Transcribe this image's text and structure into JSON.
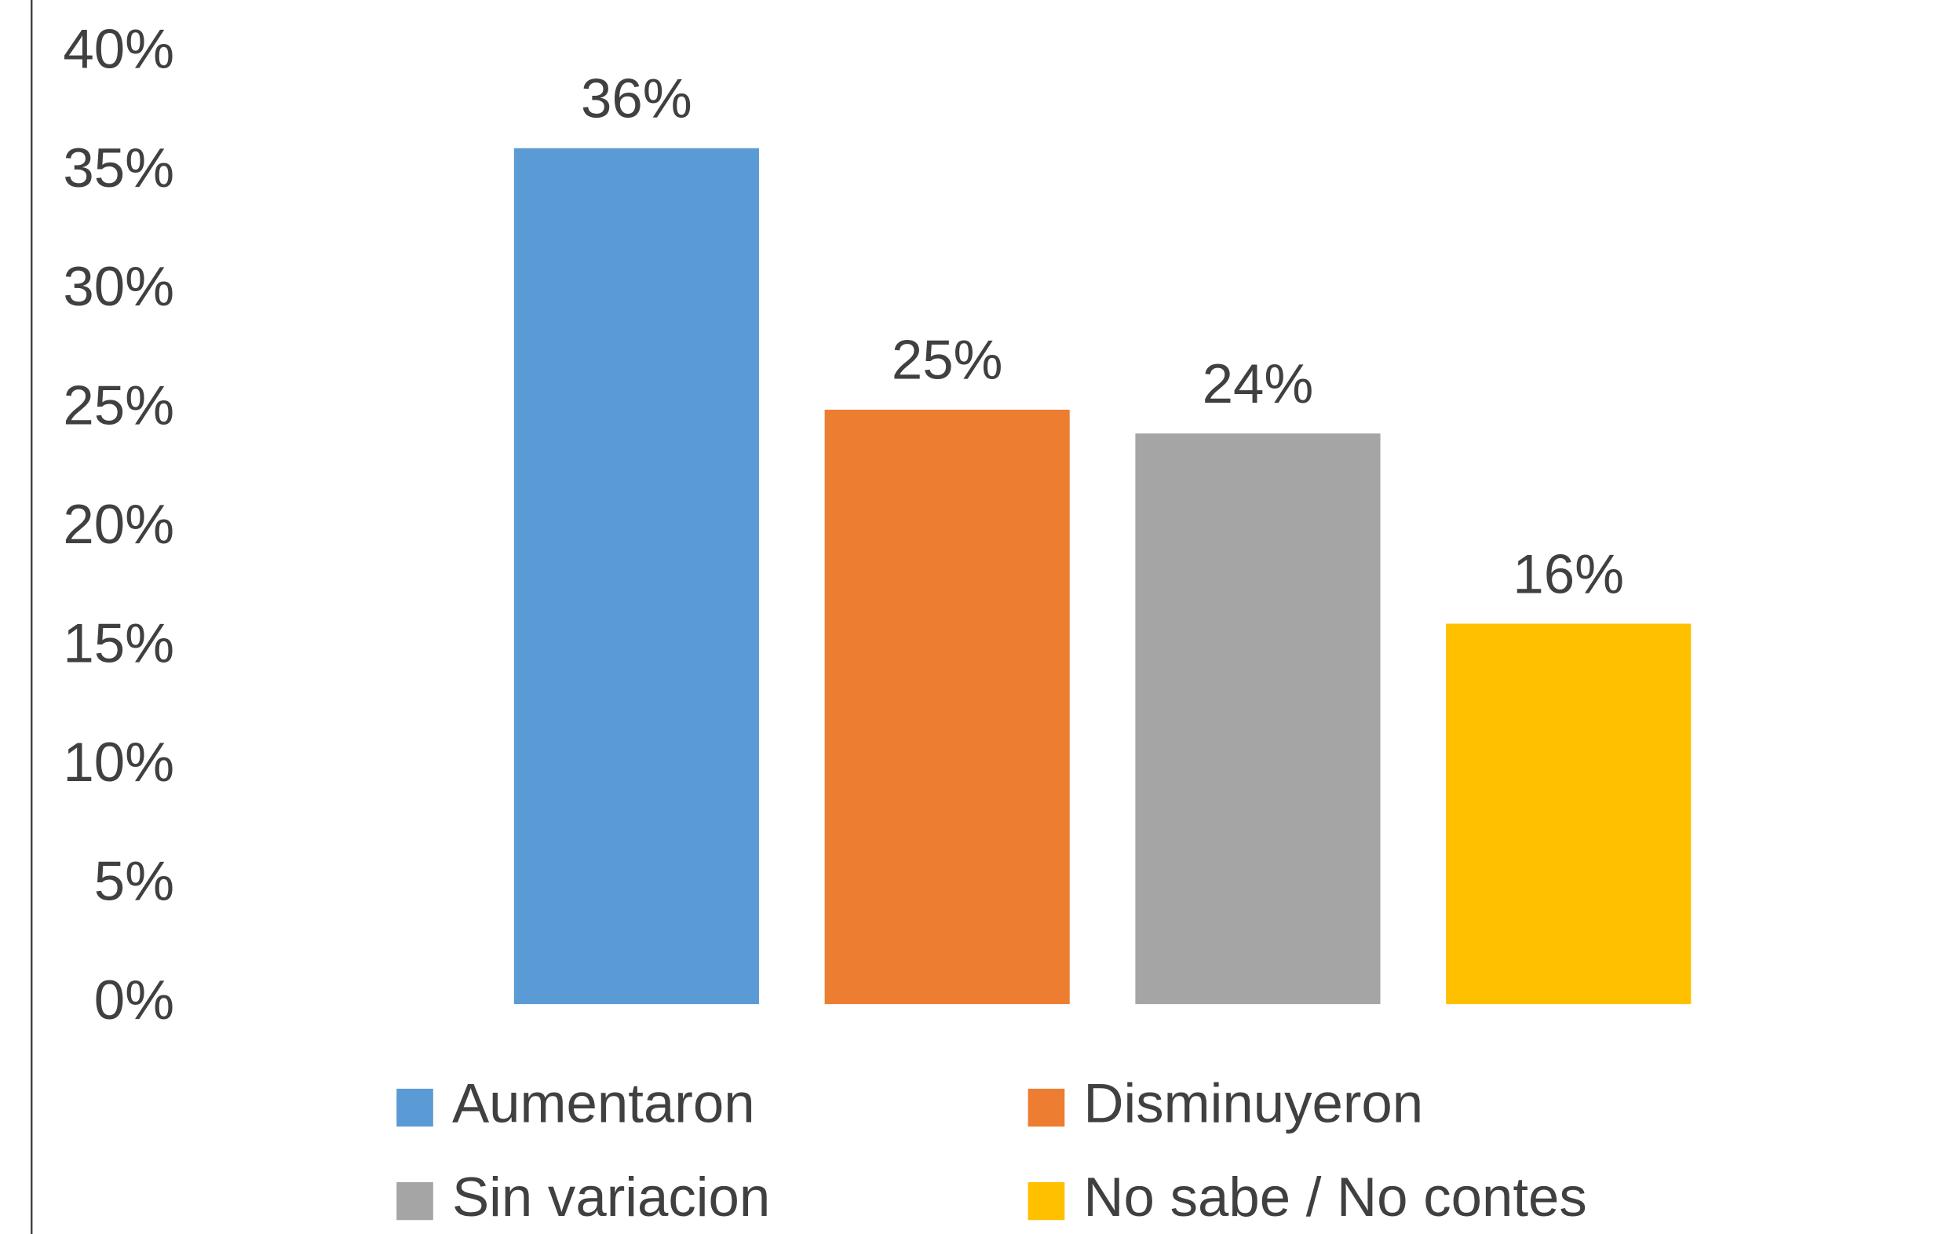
{
  "chart_data": {
    "type": "bar",
    "series": [
      {
        "name": "Aumentaron",
        "color": "#5b9bd5",
        "values": [
          36
        ],
        "value_labels": [
          "36%"
        ]
      },
      {
        "name": "Disminuyeron",
        "color": "#ed7d31",
        "values": [
          25
        ],
        "value_labels": [
          "25%"
        ]
      },
      {
        "name": "Sin variacion",
        "color": "#a5a5a5",
        "values": [
          24
        ],
        "value_labels": [
          "24%"
        ]
      },
      {
        "name": "No sabe / No contes",
        "color": "#ffc000",
        "values": [
          16
        ],
        "value_labels": [
          "16%"
        ]
      }
    ],
    "ylim": [
      0,
      40
    ],
    "yticks": [
      {
        "value": 0,
        "label": "0%"
      },
      {
        "value": 5,
        "label": "5%"
      },
      {
        "value": 10,
        "label": "10%"
      },
      {
        "value": 15,
        "label": "15%"
      },
      {
        "value": 20,
        "label": "20%"
      },
      {
        "value": 25,
        "label": "25%"
      },
      {
        "value": 30,
        "label": "30%"
      },
      {
        "value": 35,
        "label": "35%"
      },
      {
        "value": 40,
        "label": "40%"
      }
    ],
    "grid": false,
    "legend": "bottom"
  }
}
